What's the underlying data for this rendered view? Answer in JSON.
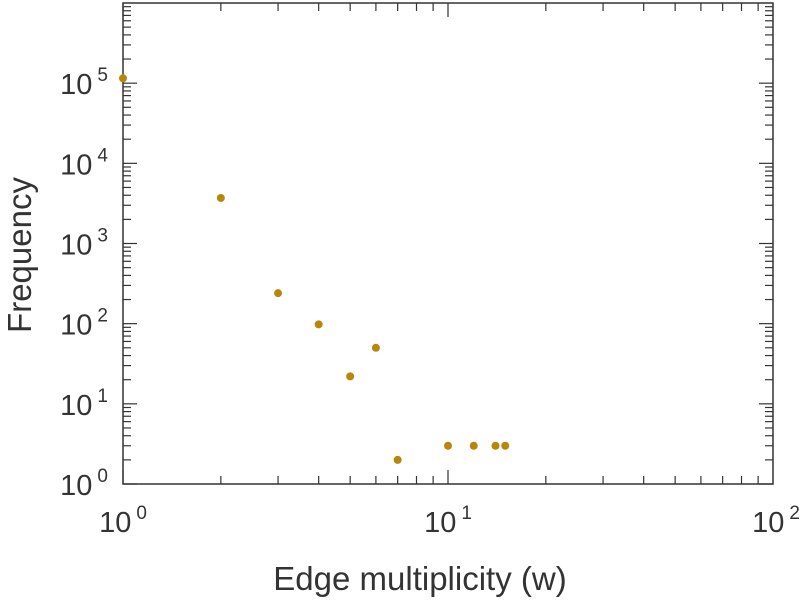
{
  "chart_data": {
    "type": "scatter",
    "title": "",
    "xlabel": "Edge multiplicity (w)",
    "ylabel": "Frequency",
    "x_scale": "log",
    "y_scale": "log",
    "xlim": [
      1,
      100
    ],
    "ylim": [
      1,
      1000000
    ],
    "x_tick_labels": [
      {
        "base": "10",
        "exp": "0"
      },
      {
        "base": "10",
        "exp": "1"
      },
      {
        "base": "10",
        "exp": "2"
      }
    ],
    "y_tick_labels": [
      {
        "base": "10",
        "exp": "0"
      },
      {
        "base": "10",
        "exp": "1"
      },
      {
        "base": "10",
        "exp": "2"
      },
      {
        "base": "10",
        "exp": "3"
      },
      {
        "base": "10",
        "exp": "4"
      },
      {
        "base": "10",
        "exp": "5"
      }
    ],
    "grid": false,
    "marker_color": "#b8860b",
    "series": [
      {
        "points": [
          {
            "x": 1,
            "y": 115000
          },
          {
            "x": 2,
            "y": 3700
          },
          {
            "x": 3,
            "y": 240
          },
          {
            "x": 4,
            "y": 98
          },
          {
            "x": 5,
            "y": 22
          },
          {
            "x": 6,
            "y": 50
          },
          {
            "x": 7,
            "y": 2
          },
          {
            "x": 10,
            "y": 3
          },
          {
            "x": 12,
            "y": 3
          },
          {
            "x": 14,
            "y": 3
          },
          {
            "x": 15,
            "y": 3
          }
        ]
      }
    ]
  }
}
